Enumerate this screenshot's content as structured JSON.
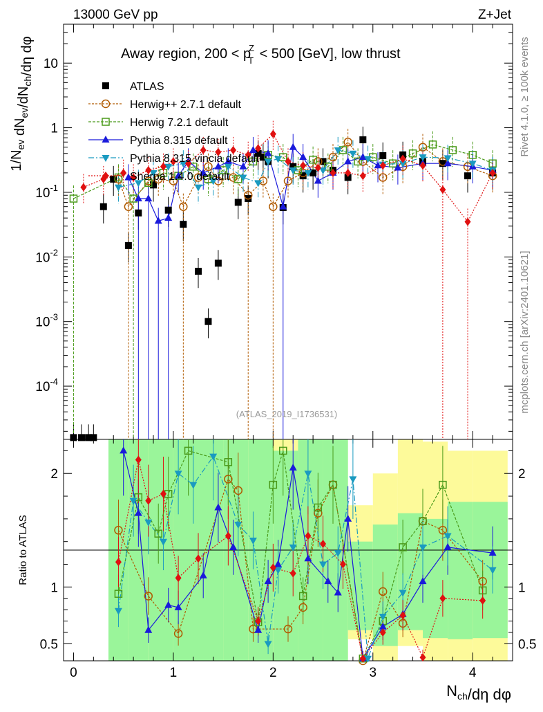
{
  "header": {
    "energy": "13000 GeV pp",
    "process": "Z+Jet"
  },
  "side_labels": {
    "rivet": "Rivet 4.1.0, ≥ 100k events",
    "mcplots": "mcplots.cern.ch [arXiv:2401.10621]"
  },
  "reference": "(ATLAS_2019_I1736531)",
  "chart_data": {
    "type": "scatter",
    "title": "Away region, 200 < p_T^Z < 500 [GeV], low thrust",
    "xlabel": "N_ch/dη dφ",
    "ylabel_main": "1/N_ev dN_ev/dN_ch/dη dφ",
    "ylabel_ratio": "Ratio to ATLAS",
    "xlim": [
      -0.1,
      4.4
    ],
    "ylim_main": [
      1.5e-05,
      40
    ],
    "ylim_ratio": [
      0.35,
      2.3
    ],
    "y_scale_main": "log",
    "legend_position": "top-left",
    "x_ticks": [
      "0",
      "1",
      "2",
      "3",
      "4"
    ],
    "y_ticks_main": [
      "10",
      "1",
      "10^-1",
      "10^-2",
      "10^-3",
      "10^-4"
    ],
    "y_ticks_ratio": [
      "2",
      "1",
      "0.5"
    ],
    "series": [
      {
        "name": "ATLAS",
        "color": "#000000",
        "marker": "square-filled",
        "x": [
          0.0,
          0.08,
          0.15,
          0.2,
          0.3,
          0.4,
          0.55,
          0.65,
          0.8,
          0.95,
          1.1,
          1.25,
          1.35,
          1.45,
          1.65,
          1.75,
          1.85,
          1.9,
          1.95,
          2.1,
          2.2,
          2.3,
          2.4,
          2.5,
          2.6,
          2.75,
          2.9,
          3.1,
          3.3,
          3.5,
          3.7,
          3.95,
          4.2
        ],
        "y": [
          1.6e-05,
          1.6e-05,
          1.6e-05,
          1.6e-05,
          0.06,
          0.16,
          0.015,
          0.048,
          0.13,
          0.053,
          0.032,
          0.006,
          0.001,
          0.008,
          0.07,
          0.08,
          0.4,
          0.35,
          0.3,
          0.058,
          0.25,
          0.18,
          0.2,
          0.3,
          0.22,
          0.17,
          0.65,
          0.37,
          0.38,
          0.3,
          0.28,
          0.18,
          0.2
        ]
      },
      {
        "name": "Herwig++ 2.7.1 default",
        "color": "#b05a00",
        "marker": "circle-open",
        "x": [
          0.45,
          0.55,
          0.75,
          0.85,
          1.0,
          1.1,
          1.25,
          1.35,
          1.45,
          1.6,
          1.75,
          1.9,
          2.0,
          2.15,
          2.3,
          2.45,
          2.6,
          2.75,
          2.9,
          3.1,
          3.3,
          3.5,
          3.7,
          3.95,
          4.2
        ],
        "y": [
          0.16,
          0.06,
          0.15,
          0.16,
          0.15,
          0.06,
          0.17,
          0.25,
          0.15,
          0.17,
          0.09,
          0.15,
          0.06,
          0.15,
          0.2,
          0.3,
          0.35,
          0.6,
          0.3,
          0.17,
          0.25,
          0.5,
          0.3,
          0.25,
          0.18
        ]
      },
      {
        "name": "Herwig 7.2.1 default",
        "color": "#4a9a1a",
        "marker": "square-open",
        "x": [
          0.0,
          0.45,
          0.6,
          0.75,
          0.9,
          1.05,
          1.2,
          1.35,
          1.5,
          1.65,
          1.8,
          1.95,
          2.1,
          2.25,
          2.4,
          2.55,
          2.7,
          2.85,
          3.0,
          3.2,
          3.4,
          3.6,
          3.8,
          4.0,
          4.2
        ],
        "y": [
          0.08,
          0.17,
          0.08,
          0.14,
          0.2,
          0.18,
          0.25,
          0.16,
          0.22,
          0.16,
          0.3,
          0.38,
          0.35,
          0.22,
          0.32,
          0.25,
          0.45,
          0.3,
          0.35,
          0.28,
          0.4,
          0.55,
          0.45,
          0.38,
          0.28
        ]
      },
      {
        "name": "Pythia 8.315 default",
        "color": "#1a1adb",
        "marker": "triangle-up-filled",
        "x": [
          0.55,
          0.65,
          0.75,
          0.85,
          0.95,
          1.05,
          1.15,
          1.3,
          1.45,
          1.55,
          1.7,
          1.8,
          1.95,
          2.1,
          2.2,
          2.3,
          2.45,
          2.6,
          2.75,
          2.9,
          3.05,
          3.25,
          3.5,
          3.75,
          4.0,
          4.2
        ],
        "y": [
          0.17,
          0.08,
          0.08,
          0.036,
          0.04,
          0.18,
          0.3,
          0.2,
          0.25,
          0.3,
          0.25,
          0.45,
          0.4,
          0.06,
          0.5,
          0.35,
          0.15,
          0.2,
          0.3,
          0.35,
          0.26,
          0.24,
          0.28,
          0.28,
          0.25,
          0.22
        ]
      },
      {
        "name": "Pythia 8.315 vincia default",
        "color": "#1a9ac0",
        "marker": "triangle-down-filled",
        "x": [
          0.45,
          0.65,
          0.8,
          0.95,
          1.1,
          1.25,
          1.4,
          1.55,
          1.7,
          1.85,
          1.95,
          2.05,
          2.2,
          2.35,
          2.5,
          2.65,
          2.8,
          2.95,
          3.1,
          3.3,
          3.5,
          3.75,
          4.0,
          4.2
        ],
        "y": [
          0.12,
          0.14,
          0.2,
          0.25,
          0.28,
          0.12,
          0.15,
          0.25,
          0.17,
          0.14,
          0.3,
          0.33,
          0.22,
          0.2,
          0.22,
          0.45,
          0.4,
          0.33,
          0.27,
          0.28,
          0.35,
          0.34,
          0.28,
          0.22
        ]
      },
      {
        "name": "Sherpa 1.4.0 default",
        "color": "#e01010",
        "marker": "diamond-filled",
        "x": [
          0.1,
          0.3,
          0.5,
          0.6,
          0.75,
          0.9,
          1.0,
          1.15,
          1.3,
          1.45,
          1.6,
          1.75,
          1.85,
          2.0,
          2.15,
          2.3,
          2.45,
          2.6,
          2.75,
          2.9,
          3.1,
          3.3,
          3.5,
          3.7,
          3.95,
          4.2
        ],
        "y": [
          0.12,
          0.16,
          0.2,
          0.17,
          0.22,
          0.25,
          0.3,
          0.28,
          0.45,
          0.42,
          0.45,
          0.38,
          0.48,
          0.8,
          0.3,
          0.26,
          0.24,
          0.2,
          0.2,
          0.18,
          0.26,
          0.33,
          0.26,
          0.11,
          0.035,
          0.2
        ]
      }
    ],
    "ratio_series": [
      {
        "name": "Herwig++ 2.7.1 default",
        "x": [
          0.45,
          0.75,
          1.05,
          1.55,
          1.65,
          1.8,
          2.15,
          2.3,
          2.45,
          2.6,
          2.9,
          3.1,
          3.3,
          3.5,
          3.7,
          4.1
        ],
        "y": [
          1.5,
          0.92,
          0.59,
          1.95,
          1.85,
          0.63,
          0.63,
          0.82,
          1.65,
          1.9,
          0.35,
          0.96,
          0.68,
          1.58,
          1.5,
          1.05
        ]
      },
      {
        "name": "Herwig 7.2.1 default",
        "x": [
          0.45,
          0.65,
          0.85,
          0.95,
          1.15,
          1.55,
          1.85,
          2.0,
          2.1,
          2.3,
          2.45,
          2.6,
          2.9,
          3.1,
          3.3,
          3.5,
          3.7,
          4.1
        ],
        "y": [
          0.94,
          1.79,
          1.47,
          1.82,
          2.2,
          2.1,
          0.69,
          1.9,
          2.2,
          0.92,
          1.7,
          1.9,
          0.37,
          0.7,
          1.35,
          1.58,
          1.9,
          0.97
        ]
      },
      {
        "name": "Pythia 8.315 default",
        "x": [
          0.5,
          0.65,
          0.75,
          0.95,
          1.05,
          1.3,
          1.45,
          1.6,
          1.85,
          1.95,
          2.05,
          2.2,
          2.35,
          2.55,
          2.65,
          2.75,
          2.9,
          3.1,
          3.3,
          3.5,
          3.75,
          4.2
        ],
        "y": [
          2.2,
          1.65,
          0.62,
          0.84,
          0.82,
          1.1,
          1.7,
          1.35,
          0.62,
          1.05,
          1.2,
          2.05,
          1.25,
          1.05,
          0.95,
          1.6,
          0.37,
          0.65,
          0.76,
          1.05,
          1.35,
          1.3
        ]
      },
      {
        "name": "Pythia 8.315 vincia default",
        "x": [
          0.45,
          0.6,
          0.75,
          0.9,
          1.05,
          1.2,
          1.4,
          1.65,
          1.8,
          1.95,
          2.05,
          2.2,
          2.35,
          2.5,
          2.65,
          2.8,
          2.95,
          3.1,
          3.3,
          3.5,
          3.75,
          4.2
        ],
        "y": [
          0.79,
          1.76,
          1.57,
          1.4,
          2.0,
          1.9,
          2.15,
          1.55,
          1.41,
          0.5,
          1.15,
          1.35,
          2.0,
          1.2,
          1.3,
          1.95,
          0.37,
          0.74,
          0.95,
          1.35,
          1.45,
          1.15
        ]
      },
      {
        "name": "Sherpa 1.4.0 default",
        "x": [
          0.45,
          0.65,
          0.75,
          0.9,
          1.05,
          1.25,
          1.55,
          1.85,
          2.0,
          2.2,
          2.35,
          2.5,
          2.7,
          2.9,
          3.1,
          3.3,
          3.5,
          3.7,
          4.1
        ],
        "y": [
          1.22,
          2.12,
          1.76,
          1.82,
          1.08,
          1.25,
          1.45,
          0.7,
          1.17,
          1.12,
          1.45,
          1.38,
          1.2,
          0.37,
          0.6,
          0.75,
          0.38,
          0.9,
          0.88
        ]
      }
    ]
  }
}
